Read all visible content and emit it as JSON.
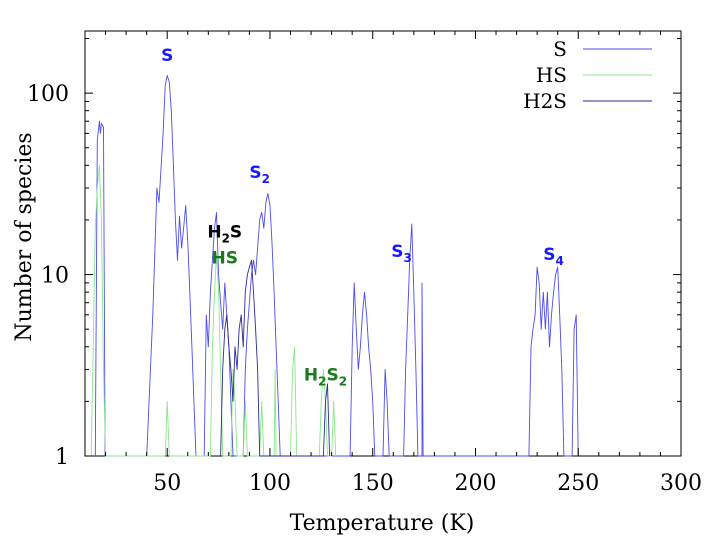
{
  "chart_data": {
    "type": "line",
    "xlabel": "Temperature (K)",
    "ylabel": "Number of species",
    "xlim": [
      10,
      300
    ],
    "ylim": [
      1,
      220
    ],
    "yscale": "log",
    "grid": false,
    "legend_position": "top-right",
    "xticks": [
      50,
      100,
      150,
      200,
      250,
      300
    ],
    "yticks": [
      {
        "value": 1,
        "label": "1"
      },
      {
        "value": 10,
        "label": "10"
      },
      {
        "value": 100,
        "label": "100"
      }
    ],
    "series": [
      {
        "name": "S",
        "color": "#4c4cf0",
        "points": [
          [
            15,
            1
          ],
          [
            16,
            55
          ],
          [
            17,
            70
          ],
          [
            17.5,
            60
          ],
          [
            18,
            68
          ],
          [
            19,
            65
          ],
          [
            19.8,
            1
          ],
          [
            40,
            1
          ],
          [
            43,
            6
          ],
          [
            45,
            30
          ],
          [
            46,
            25
          ],
          [
            48,
            60
          ],
          [
            49,
            110
          ],
          [
            50,
            125
          ],
          [
            51,
            115
          ],
          [
            52,
            80
          ],
          [
            53,
            40
          ],
          [
            54,
            20
          ],
          [
            55,
            12
          ],
          [
            56,
            21
          ],
          [
            57,
            14
          ],
          [
            58,
            18
          ],
          [
            59,
            24
          ],
          [
            60,
            15
          ],
          [
            61,
            8
          ],
          [
            62,
            4
          ],
          [
            63,
            2
          ],
          [
            64,
            1
          ],
          [
            68,
            1
          ],
          [
            69,
            6
          ],
          [
            70,
            4
          ],
          [
            71,
            8
          ],
          [
            72,
            12
          ],
          [
            73,
            18
          ],
          [
            74,
            22
          ],
          [
            75,
            10
          ],
          [
            76,
            7
          ],
          [
            77,
            5
          ],
          [
            78,
            9
          ],
          [
            79,
            6
          ],
          [
            80,
            4
          ],
          [
            81,
            2
          ],
          [
            82,
            1
          ],
          [
            87,
            1
          ],
          [
            88,
            3
          ],
          [
            89,
            5
          ],
          [
            90,
            7
          ],
          [
            91,
            10
          ],
          [
            92,
            12
          ],
          [
            93,
            10
          ],
          [
            94,
            14
          ],
          [
            95,
            20
          ],
          [
            96,
            22
          ],
          [
            97,
            18
          ],
          [
            98,
            25
          ],
          [
            99,
            28
          ],
          [
            100,
            24
          ],
          [
            101,
            15
          ],
          [
            102,
            8
          ],
          [
            103,
            4
          ],
          [
            104,
            2
          ],
          [
            105,
            1
          ],
          [
            139,
            1
          ],
          [
            140,
            4
          ],
          [
            141,
            9
          ],
          [
            142,
            5
          ],
          [
            143,
            3
          ],
          [
            144,
            4
          ],
          [
            145,
            6
          ],
          [
            146,
            8
          ],
          [
            147,
            6
          ],
          [
            148,
            4
          ],
          [
            149,
            3
          ],
          [
            150,
            2
          ],
          [
            151,
            1
          ],
          [
            155,
            1
          ],
          [
            156,
            3
          ],
          [
            157,
            2
          ],
          [
            158,
            1
          ],
          [
            165,
            1
          ],
          [
            166,
            3
          ],
          [
            167,
            6
          ],
          [
            168,
            12
          ],
          [
            169,
            19
          ],
          [
            170,
            8
          ],
          [
            171,
            3
          ],
          [
            172,
            1
          ],
          [
            174,
            1
          ],
          [
            174,
            9
          ],
          [
            174.5,
            1
          ],
          [
            226,
            1
          ],
          [
            227,
            4
          ],
          [
            228,
            5
          ],
          [
            229,
            6
          ],
          [
            230,
            11
          ],
          [
            231,
            9
          ],
          [
            232,
            5
          ],
          [
            233,
            8
          ],
          [
            234,
            5
          ],
          [
            235,
            8
          ],
          [
            236,
            4
          ],
          [
            237,
            6
          ],
          [
            238,
            8
          ],
          [
            239,
            10
          ],
          [
            240,
            11
          ],
          [
            241,
            6
          ],
          [
            242,
            3
          ],
          [
            243,
            1
          ],
          [
            247,
            1
          ],
          [
            248,
            5
          ],
          [
            249,
            6
          ],
          [
            250,
            1
          ]
        ]
      },
      {
        "name": "HS",
        "color": "#8ce68c",
        "points": [
          [
            13,
            1
          ],
          [
            14,
            4
          ],
          [
            15,
            18
          ],
          [
            16,
            30
          ],
          [
            17,
            40
          ],
          [
            18,
            20
          ],
          [
            19,
            3
          ],
          [
            20,
            1
          ],
          [
            49,
            1
          ],
          [
            50,
            2
          ],
          [
            51,
            1
          ],
          [
            71,
            1
          ],
          [
            72,
            4
          ],
          [
            73,
            8
          ],
          [
            74,
            13
          ],
          [
            75,
            8
          ],
          [
            76,
            3
          ],
          [
            77,
            1
          ],
          [
            81,
            1
          ],
          [
            82,
            3
          ],
          [
            83,
            2
          ],
          [
            84,
            1
          ],
          [
            87,
            1
          ],
          [
            88,
            2
          ],
          [
            89,
            1
          ],
          [
            95,
            1
          ],
          [
            96,
            2
          ],
          [
            97,
            1
          ],
          [
            102,
            1
          ],
          [
            102.5,
            3
          ],
          [
            103,
            1
          ],
          [
            110,
            1
          ],
          [
            111,
            3
          ],
          [
            112,
            4
          ],
          [
            113,
            1
          ],
          [
            124,
            1
          ],
          [
            125,
            2
          ],
          [
            126,
            3
          ],
          [
            127,
            2
          ],
          [
            128,
            1
          ],
          [
            130,
            1
          ],
          [
            131,
            2
          ],
          [
            132,
            1
          ]
        ]
      },
      {
        "name": "H2S",
        "color": "#2b2b9a",
        "points": [
          [
            76,
            1
          ],
          [
            77,
            3
          ],
          [
            78,
            5
          ],
          [
            79,
            6
          ],
          [
            80,
            4
          ],
          [
            81,
            3
          ],
          [
            82,
            2
          ],
          [
            83,
            4
          ],
          [
            84,
            3
          ],
          [
            85,
            5
          ],
          [
            86,
            6
          ],
          [
            87,
            4
          ],
          [
            88,
            8
          ],
          [
            89,
            10
          ],
          [
            90,
            11
          ],
          [
            91,
            12
          ],
          [
            92,
            8
          ],
          [
            93,
            5
          ],
          [
            94,
            3
          ],
          [
            95,
            1
          ],
          [
            126,
            1
          ],
          [
            127,
            2
          ],
          [
            128,
            2.5
          ],
          [
            129,
            1
          ]
        ]
      }
    ],
    "annotations": [
      {
        "text": "S",
        "sub": "",
        "x": 50,
        "y": 150,
        "color": "#1a1aff"
      },
      {
        "text": "S",
        "sub": "2",
        "x": 95,
        "y": 34,
        "color": "#1a1aff"
      },
      {
        "text": "H",
        "sub": "2",
        "after": "S",
        "x": 78,
        "y": 16,
        "color": "#000000"
      },
      {
        "text": "HS",
        "sub": "",
        "x": 78,
        "y": 11.5,
        "color": "#1a7a1a"
      },
      {
        "text": "H",
        "sub": "2",
        "after": "S",
        "sub2": "2",
        "x": 127,
        "y": 2.6,
        "color": "#1a7a1a"
      },
      {
        "text": "S",
        "sub": "3",
        "x": 164,
        "y": 12.5,
        "color": "#1a1aff"
      },
      {
        "text": "S",
        "sub": "4",
        "x": 238,
        "y": 12,
        "color": "#1a1aff"
      }
    ]
  }
}
